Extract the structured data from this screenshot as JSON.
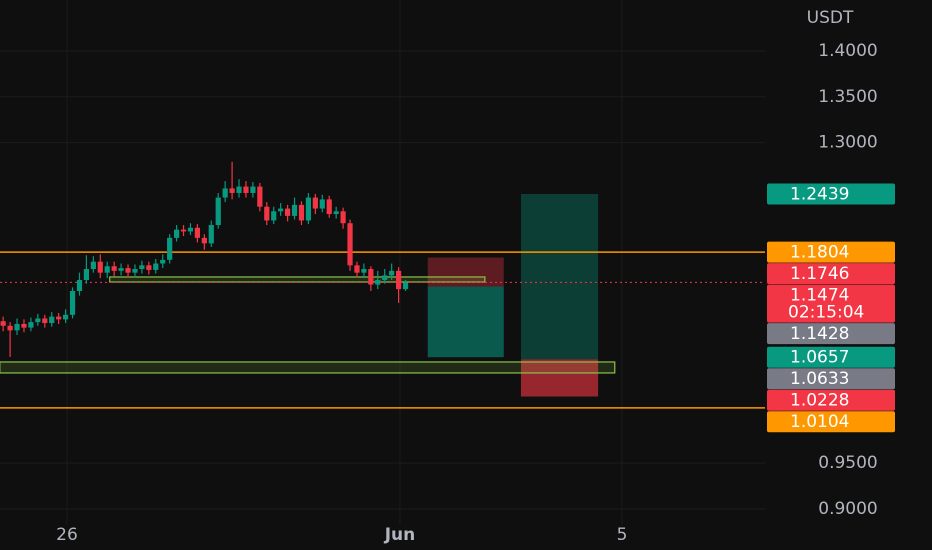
{
  "chart_data": {
    "type": "candlestick",
    "currency": "USDT",
    "xlim": [
      -1.207,
      12.577
    ],
    "ylim": [
      0.8825,
      1.4557
    ],
    "xticks": [
      {
        "value": 0,
        "label": "26"
      },
      {
        "value": 6,
        "label": "Jun"
      },
      {
        "value": 10,
        "label": "5"
      }
    ],
    "yticks": [
      {
        "value": 1.4,
        "label": "1.4000"
      },
      {
        "value": 1.35,
        "label": "1.3500"
      },
      {
        "value": 1.3,
        "label": "1.3000"
      },
      {
        "value": 0.95,
        "label": "0.9500"
      },
      {
        "value": 0.9,
        "label": "0.9000"
      }
    ],
    "colors": {
      "up": "#089981",
      "down": "#f23645",
      "entry": "#787b86"
    },
    "candles": {
      "x": [
        -1.15,
        -1.025,
        -0.9,
        -0.775,
        -0.65,
        -0.525,
        -0.4,
        -0.275,
        -0.15,
        -0.025,
        0.1,
        0.225,
        0.35,
        0.475,
        0.6,
        0.725,
        0.85,
        0.975,
        1.1,
        1.225,
        1.35,
        1.475,
        1.6,
        1.725,
        1.85,
        1.975,
        2.1,
        2.225,
        2.35,
        2.475,
        2.6,
        2.725,
        2.85,
        2.975,
        3.1,
        3.225,
        3.35,
        3.475,
        3.6,
        3.725,
        3.85,
        3.975,
        4.1,
        4.225,
        4.35,
        4.475,
        4.6,
        4.725,
        4.85,
        4.975,
        5.1,
        5.225,
        5.35,
        5.475,
        5.6,
        5.725,
        5.85,
        5.975,
        6.1
      ],
      "open": [
        1.105,
        1.1,
        1.095,
        1.102,
        1.098,
        1.104,
        1.108,
        1.103,
        1.11,
        1.107,
        1.112,
        1.138,
        1.15,
        1.162,
        1.17,
        1.158,
        1.165,
        1.16,
        1.163,
        1.158,
        1.162,
        1.166,
        1.161,
        1.168,
        1.172,
        1.196,
        1.205,
        1.203,
        1.207,
        1.196,
        1.19,
        1.21,
        1.24,
        1.25,
        1.245,
        1.252,
        1.245,
        1.252,
        1.23,
        1.215,
        1.225,
        1.228,
        1.22,
        1.232,
        1.215,
        1.24,
        1.228,
        1.238,
        1.222,
        1.225,
        1.212,
        1.166,
        1.158,
        1.162,
        1.145,
        1.15,
        1.155,
        1.16,
        1.14
      ],
      "high": [
        1.11,
        1.104,
        1.108,
        1.107,
        1.109,
        1.113,
        1.112,
        1.115,
        1.114,
        1.118,
        1.142,
        1.158,
        1.177,
        1.176,
        1.178,
        1.17,
        1.17,
        1.168,
        1.167,
        1.167,
        1.171,
        1.17,
        1.173,
        1.178,
        1.2,
        1.21,
        1.21,
        1.212,
        1.211,
        1.2,
        1.215,
        1.245,
        1.258,
        1.279,
        1.26,
        1.258,
        1.257,
        1.256,
        1.235,
        1.23,
        1.234,
        1.232,
        1.24,
        1.236,
        1.245,
        1.244,
        1.243,
        1.242,
        1.23,
        1.229,
        1.216,
        1.17,
        1.168,
        1.165,
        1.16,
        1.162,
        1.168,
        1.164,
        1.15
      ],
      "low": [
        1.094,
        1.066,
        1.09,
        1.093,
        1.094,
        1.1,
        1.098,
        1.099,
        1.102,
        1.103,
        1.108,
        1.133,
        1.146,
        1.158,
        1.152,
        1.152,
        1.154,
        1.155,
        1.153,
        1.153,
        1.157,
        1.156,
        1.157,
        1.163,
        1.168,
        1.192,
        1.198,
        1.199,
        1.191,
        1.183,
        1.186,
        1.206,
        1.235,
        1.238,
        1.24,
        1.24,
        1.24,
        1.225,
        1.21,
        1.211,
        1.22,
        1.214,
        1.216,
        1.21,
        1.211,
        1.222,
        1.224,
        1.218,
        1.217,
        1.206,
        1.16,
        1.153,
        1.152,
        1.138,
        1.14,
        1.146,
        1.15,
        1.125,
        1.138
      ],
      "close": [
        1.1,
        1.095,
        1.102,
        1.098,
        1.104,
        1.108,
        1.103,
        1.11,
        1.107,
        1.112,
        1.138,
        1.15,
        1.162,
        1.17,
        1.158,
        1.165,
        1.16,
        1.163,
        1.158,
        1.162,
        1.166,
        1.161,
        1.168,
        1.172,
        1.196,
        1.205,
        1.203,
        1.207,
        1.196,
        1.19,
        1.21,
        1.24,
        1.25,
        1.245,
        1.252,
        1.245,
        1.252,
        1.23,
        1.215,
        1.225,
        1.228,
        1.22,
        1.232,
        1.215,
        1.24,
        1.228,
        1.238,
        1.222,
        1.225,
        1.212,
        1.166,
        1.158,
        1.162,
        1.145,
        1.15,
        1.155,
        1.16,
        1.14,
        1.1474
      ]
    },
    "countdown": "02:15:04",
    "hlines": [
      {
        "value": 1.1804,
        "color": "#ff9800"
      },
      {
        "value": 1.0104,
        "color": "#ff9800"
      }
    ],
    "zones": [
      {
        "x": [
          -1.21,
          9.87
        ],
        "top": 1.0605,
        "bottom": 1.0485,
        "color": "#8bc34a"
      },
      {
        "x": [
          0.77,
          7.53
        ],
        "top": 1.1533,
        "bottom": 1.1478,
        "color": "#8bc34a"
      }
    ],
    "position_tools": [
      {
        "x": [
          6.5,
          7.87
        ],
        "entry": 1.1428,
        "stop": 1.1746,
        "target": 1.0657
      },
      {
        "x": [
          8.18,
          9.57
        ],
        "entry": 1.0633,
        "stop": 1.0228,
        "target": 1.2439
      }
    ]
  }
}
